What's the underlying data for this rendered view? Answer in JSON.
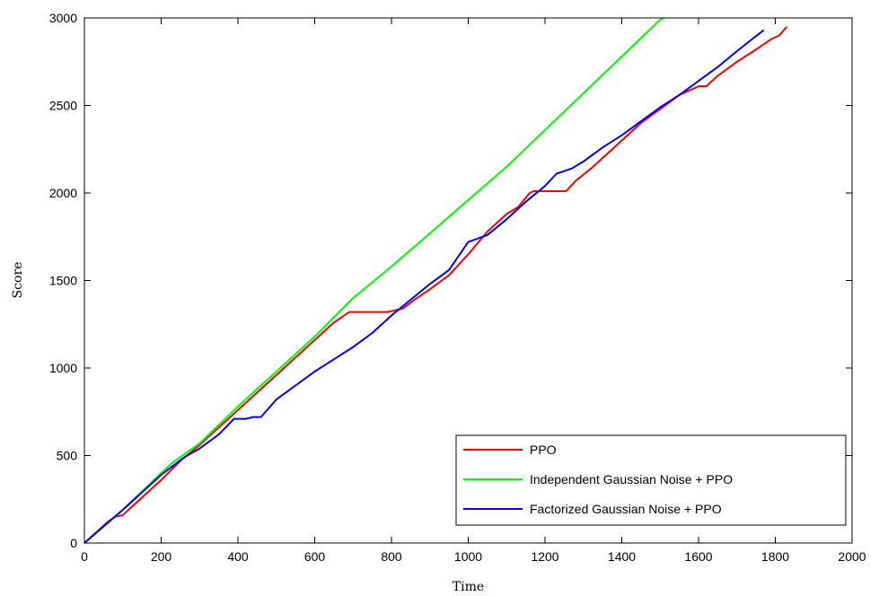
{
  "chart_data": {
    "type": "line",
    "title": "",
    "xlabel": "Time",
    "ylabel": "Score",
    "xlim": [
      0,
      2000
    ],
    "ylim": [
      0,
      3000
    ],
    "xticks": [
      0,
      200,
      400,
      600,
      800,
      1000,
      1200,
      1400,
      1600,
      1800,
      2000
    ],
    "yticks": [
      0,
      500,
      1000,
      1500,
      2000,
      2500,
      3000
    ],
    "grid": false,
    "legend_position": "bottom-right",
    "series": [
      {
        "name": "PPO",
        "color": "#ff0000",
        "x": [
          0,
          60,
          80,
          100,
          120,
          160,
          200,
          250,
          300,
          350,
          400,
          450,
          500,
          550,
          600,
          650,
          690,
          700,
          740,
          790,
          830,
          860,
          900,
          950,
          1000,
          1050,
          1100,
          1130,
          1160,
          1170,
          1200,
          1220,
          1255,
          1280,
          1320,
          1360,
          1400,
          1450,
          1500,
          1550,
          1600,
          1620,
          1650,
          1700,
          1750,
          1790,
          1810,
          1830
        ],
        "y": [
          0,
          120,
          150,
          160,
          200,
          280,
          360,
          470,
          560,
          660,
          760,
          860,
          960,
          1060,
          1160,
          1260,
          1320,
          1320,
          1320,
          1320,
          1340,
          1390,
          1450,
          1530,
          1650,
          1780,
          1880,
          1920,
          2000,
          2010,
          2010,
          2010,
          2010,
          2070,
          2140,
          2220,
          2300,
          2400,
          2480,
          2560,
          2610,
          2610,
          2670,
          2750,
          2820,
          2880,
          2900,
          2950
        ]
      },
      {
        "name": "Independent Gaussian Noise + PPO",
        "color": "#00ff00",
        "x": [
          0,
          100,
          200,
          230,
          300,
          400,
          500,
          600,
          700,
          800,
          900,
          1000,
          1100,
          1200,
          1300,
          1400,
          1500,
          1510
        ],
        "y": [
          0,
          190,
          400,
          460,
          570,
          780,
          980,
          1180,
          1400,
          1580,
          1770,
          1960,
          2150,
          2360,
          2570,
          2780,
          2990,
          3000
        ]
      },
      {
        "name": "Factorized Gaussian Noise + PPO",
        "color": "#0000ff",
        "x": [
          0,
          100,
          200,
          260,
          300,
          350,
          390,
          420,
          440,
          460,
          500,
          550,
          600,
          650,
          700,
          750,
          800,
          850,
          900,
          950,
          1000,
          1050,
          1100,
          1150,
          1200,
          1230,
          1270,
          1300,
          1350,
          1400,
          1450,
          1500,
          1550,
          1600,
          1650,
          1700,
          1740,
          1770
        ],
        "y": [
          0,
          190,
          390,
          490,
          540,
          620,
          710,
          710,
          720,
          720,
          820,
          900,
          980,
          1050,
          1120,
          1200,
          1300,
          1390,
          1480,
          1560,
          1720,
          1760,
          1850,
          1950,
          2040,
          2110,
          2140,
          2180,
          2260,
          2330,
          2410,
          2490,
          2560,
          2640,
          2720,
          2810,
          2880,
          2930
        ]
      }
    ]
  }
}
